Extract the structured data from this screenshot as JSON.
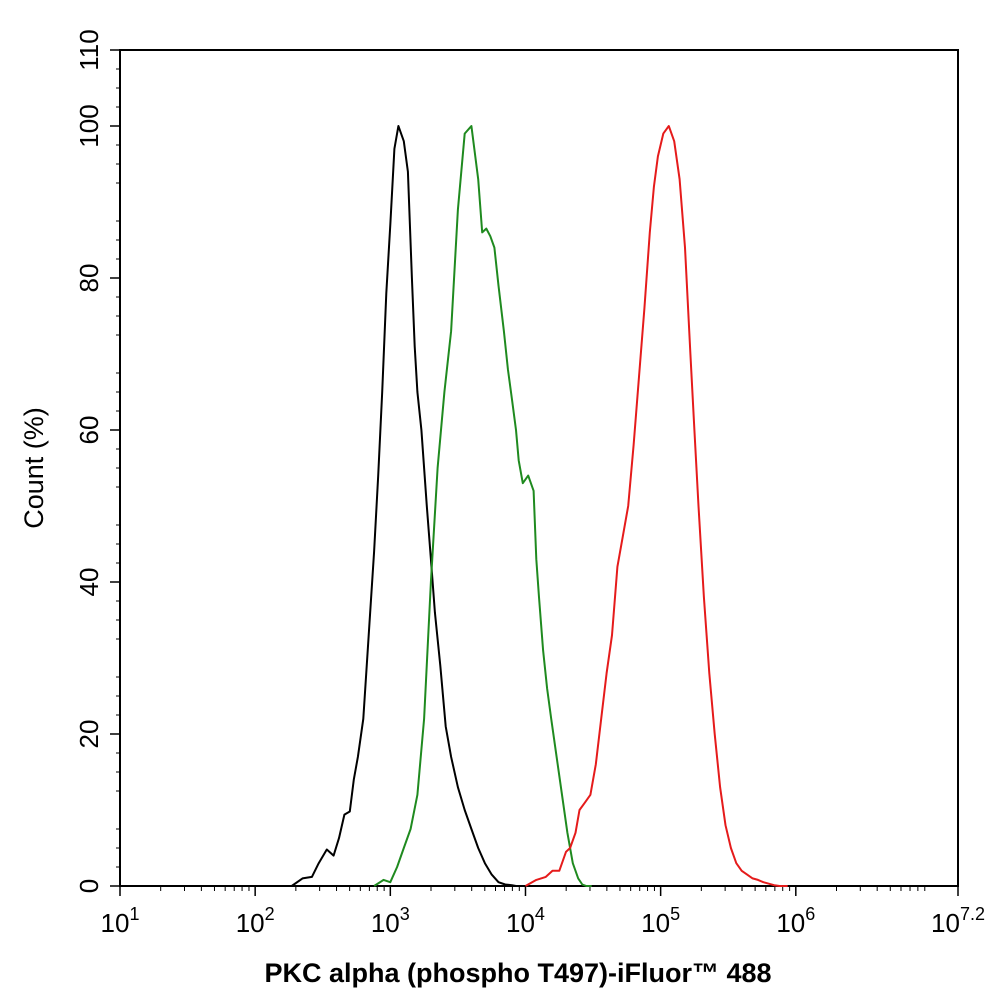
{
  "chart_data": {
    "type": "line",
    "xscale": "log10",
    "xlim_log10": [
      1,
      7.2
    ],
    "ylim": [
      0,
      110
    ],
    "xlabel": "PKC alpha (phospho T497)-iFluor™ 488",
    "ylabel": "Count  (%)",
    "x_ticks": [
      {
        "base": "10",
        "exp": "1"
      },
      {
        "base": "10",
        "exp": "2"
      },
      {
        "base": "10",
        "exp": "3"
      },
      {
        "base": "10",
        "exp": "4"
      },
      {
        "base": "10",
        "exp": "5"
      },
      {
        "base": "10",
        "exp": "6"
      },
      {
        "base": "10",
        "exp": "7.2"
      }
    ],
    "y_ticks": [
      "0",
      "20",
      "40",
      "60",
      "80",
      "100",
      "110"
    ],
    "grid": false,
    "series": [
      {
        "name": "black",
        "color": "#000000",
        "x_log10": [
          2.27,
          2.35,
          2.42,
          2.47,
          2.53,
          2.58,
          2.62,
          2.66,
          2.7,
          2.73,
          2.76,
          2.8,
          2.84,
          2.88,
          2.91,
          2.94,
          2.97,
          3.0,
          3.03,
          3.06,
          3.1,
          3.13,
          3.16,
          3.18,
          3.2,
          3.23,
          3.27,
          3.3,
          3.33,
          3.37,
          3.41,
          3.45,
          3.5,
          3.55,
          3.6,
          3.65,
          3.7,
          3.75,
          3.8,
          3.85,
          3.9,
          3.93
        ],
        "y": [
          0,
          1.0,
          1.2,
          3.0,
          4.8,
          4.0,
          6.3,
          9.4,
          9.8,
          14.0,
          17.0,
          22.0,
          33.0,
          44.0,
          54.0,
          65.0,
          78.0,
          87.0,
          97.0,
          100.0,
          98.0,
          94.0,
          80.0,
          71.0,
          65.0,
          60.0,
          50.0,
          43.0,
          36.0,
          29.0,
          21.0,
          17.0,
          13.0,
          10.0,
          7.5,
          5.0,
          3.0,
          1.5,
          0.5,
          0.2,
          0.1,
          0
        ]
      },
      {
        "name": "green",
        "color": "#1f8a1f",
        "x_log10": [
          2.88,
          2.95,
          3.0,
          3.05,
          3.1,
          3.15,
          3.2,
          3.25,
          3.3,
          3.35,
          3.4,
          3.45,
          3.5,
          3.55,
          3.6,
          3.65,
          3.68,
          3.71,
          3.74,
          3.77,
          3.8,
          3.84,
          3.87,
          3.9,
          3.93,
          3.95,
          3.98,
          4.02,
          4.06,
          4.08,
          4.1,
          4.13,
          4.16,
          4.19,
          4.23,
          4.27,
          4.31,
          4.35,
          4.39,
          4.42,
          4.45,
          4.47,
          4.49
        ],
        "y": [
          0,
          0.8,
          0.5,
          2.5,
          5.0,
          7.5,
          12.0,
          22.0,
          40.0,
          55.0,
          65.0,
          73.0,
          89.0,
          99.0,
          100.0,
          93.0,
          86.0,
          86.5,
          85.5,
          84.0,
          79.0,
          73.0,
          68.0,
          64.0,
          60.0,
          56.0,
          53.0,
          54.0,
          52.0,
          43.0,
          38.0,
          31.0,
          26.0,
          22.0,
          17.0,
          12.0,
          7.0,
          3.0,
          1.0,
          0.2,
          0,
          0,
          0
        ]
      },
      {
        "name": "red",
        "color": "#e51b1b",
        "x_log10": [
          4.0,
          4.08,
          4.15,
          4.2,
          4.25,
          4.3,
          4.33,
          4.37,
          4.4,
          4.44,
          4.48,
          4.52,
          4.56,
          4.6,
          4.64,
          4.68,
          4.72,
          4.76,
          4.8,
          4.84,
          4.88,
          4.92,
          4.95,
          4.98,
          5.02,
          5.06,
          5.1,
          5.14,
          5.18,
          5.22,
          5.25,
          5.28,
          5.32,
          5.36,
          5.4,
          5.44,
          5.48,
          5.52,
          5.56,
          5.6,
          5.64,
          5.68,
          5.72,
          5.76,
          5.8,
          5.84,
          5.88,
          5.94
        ],
        "y": [
          0,
          0.8,
          1.2,
          2.0,
          2.0,
          4.5,
          5.0,
          7.0,
          10.0,
          11.0,
          12.0,
          16.0,
          22.0,
          28.0,
          33.0,
          42.0,
          46.0,
          50.0,
          58.0,
          67.0,
          76.0,
          86.0,
          92.0,
          96.0,
          99.0,
          100.0,
          98.0,
          93.0,
          84.0,
          70.0,
          60.0,
          50.0,
          38.0,
          28.0,
          20.0,
          13.0,
          8.0,
          5.0,
          3.0,
          2.0,
          1.5,
          1.0,
          0.8,
          0.5,
          0.3,
          0.1,
          0,
          0
        ]
      }
    ]
  }
}
